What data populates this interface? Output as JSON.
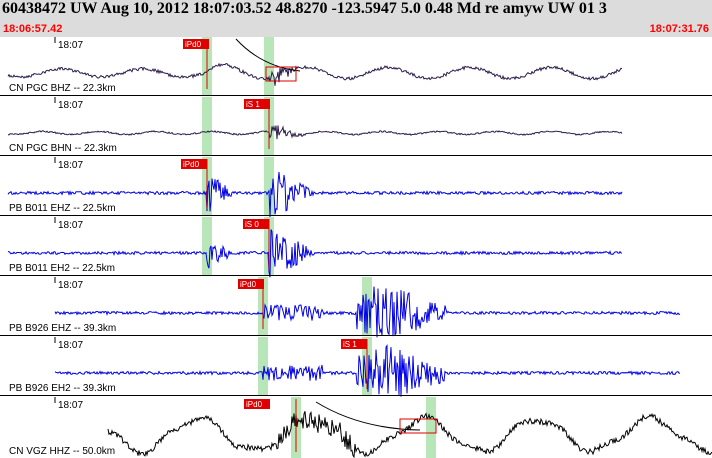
{
  "header": {
    "title": "60438472 UW Aug 10, 2012 18:07:03.52    48.8270 -123.5947   5.0 0.48 Md re amyw UW 01    3",
    "start_time": "18:06:57.42",
    "end_time": "18:07:31.76"
  },
  "colors": {
    "header_bg": "#dcdcdc",
    "time_red": "#ff0000",
    "trace_dark": "#2b1b4a",
    "trace_blue": "#0000e6",
    "trace_black": "#000000",
    "window_green": "#b8e6b8",
    "pick_red": "#e00000"
  },
  "panels": [
    {
      "tick": "18:07",
      "label": "CN PGC BHZ -- 22.3km",
      "color": "trace_dark",
      "pick": "iPd0"
    },
    {
      "tick": "18:07",
      "label": "CN PGC BHN -- 22.3km",
      "color": "trace_dark",
      "pick": "iS 1"
    },
    {
      "tick": "18:07",
      "label": "PB B011 EHZ -- 22.5km",
      "color": "trace_blue",
      "pick": "iPd0"
    },
    {
      "tick": "18:07",
      "label": "PB B011 EH2 -- 22.5km",
      "color": "trace_blue",
      "pick": "iS 0"
    },
    {
      "tick": "18:07",
      "label": "PB B926 EHZ -- 39.3km",
      "color": "trace_blue",
      "pick": "iPd0"
    },
    {
      "tick": "18:07",
      "label": "PB B926 EH2 -- 39.3km",
      "color": "trace_blue",
      "pick": "iS 1"
    },
    {
      "tick": "18:07",
      "label": "CN VGZ HHZ -- 50.0km",
      "color": "trace_black",
      "pick": "iPd0"
    }
  ]
}
